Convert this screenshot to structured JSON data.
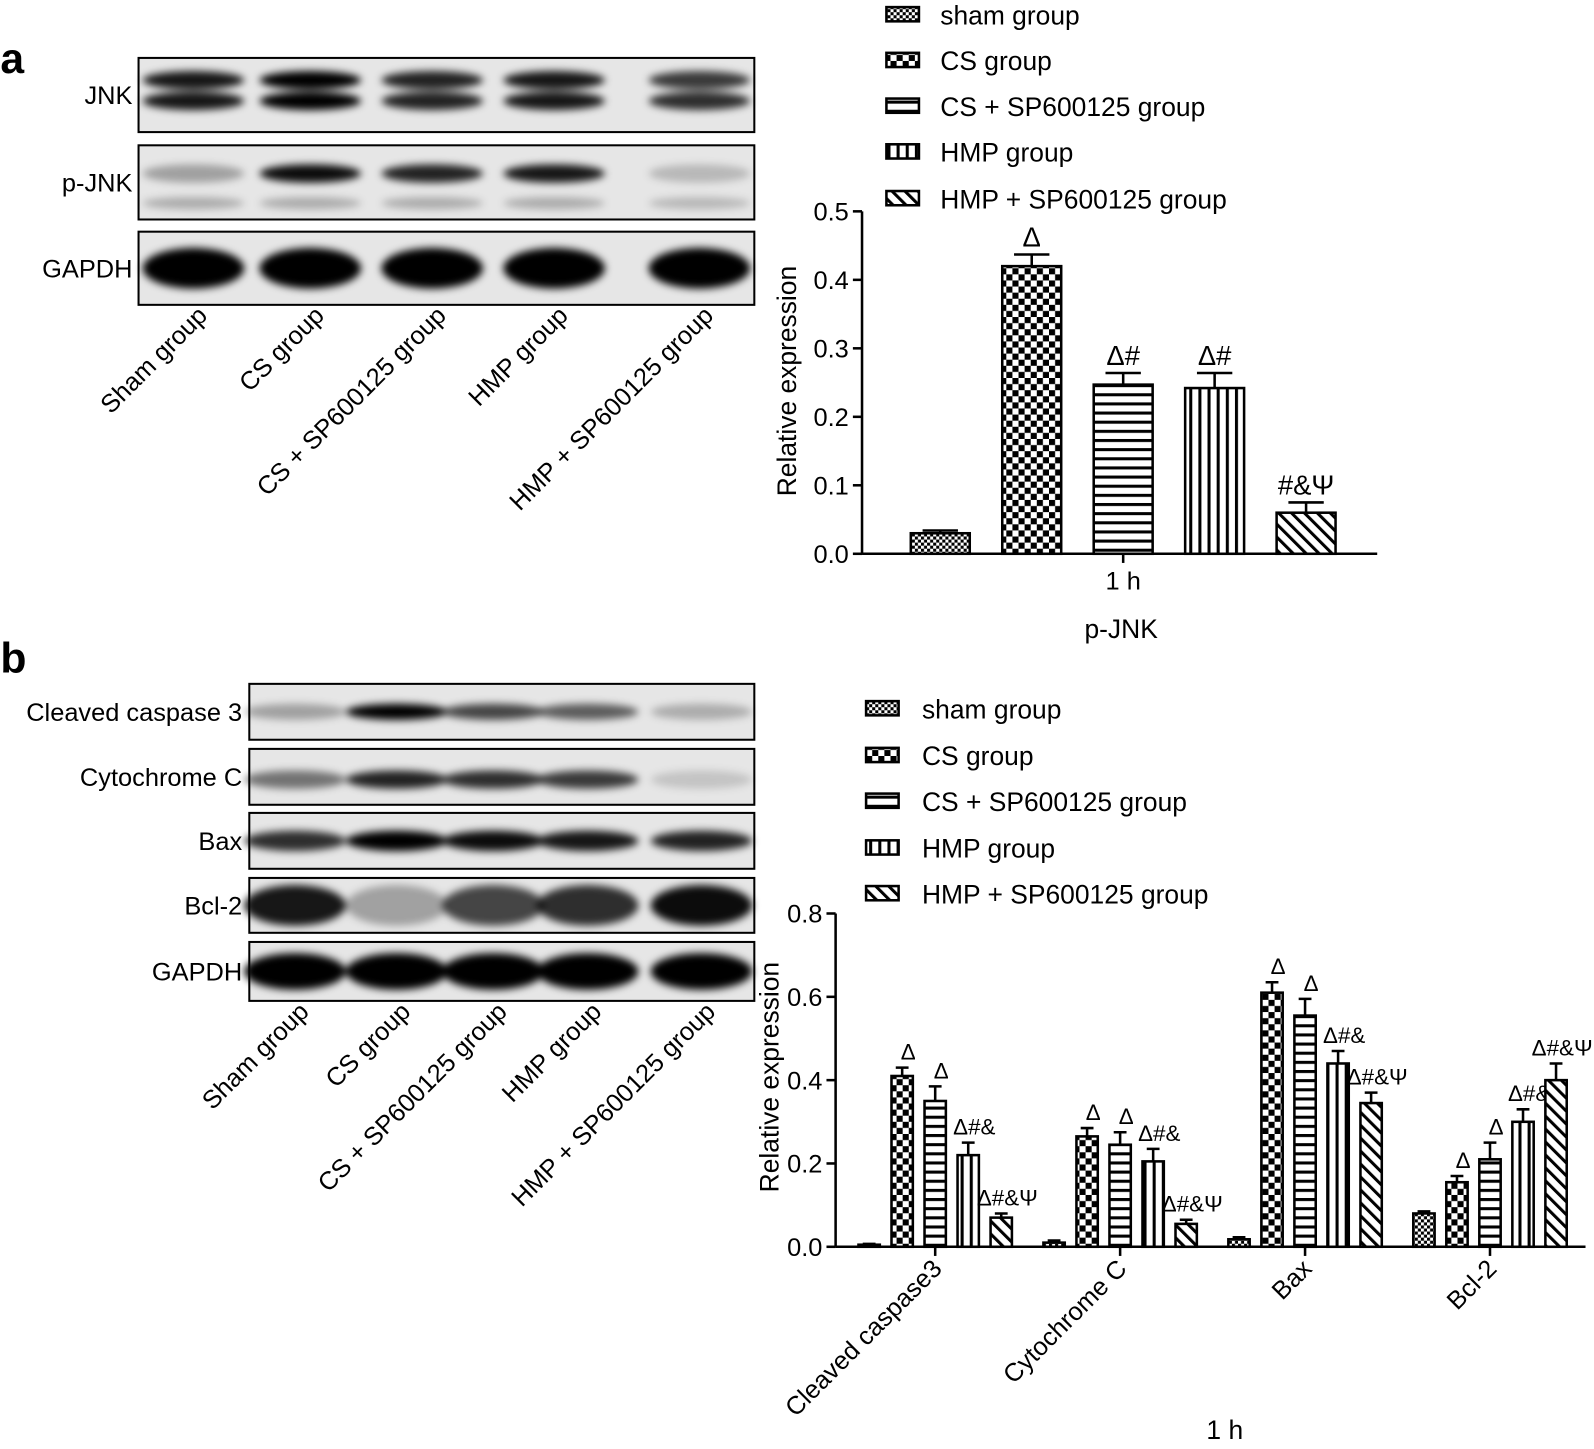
{
  "panel_labels": [
    "a",
    "b"
  ],
  "blots": [
    {
      "rows": [
        "JNK",
        "p-JNK",
        "GAPDH"
      ],
      "lanes": [
        "Sham group",
        "CS group",
        "CS + SP600125 group",
        "HMP group",
        "HMP + SP600125 group"
      ]
    },
    {
      "rows": [
        "Cleaved caspase 3",
        "Cytochrome C",
        "Bax",
        "Bcl-2",
        "GAPDH"
      ],
      "lanes": [
        "Sham group",
        "CS group",
        "CS + SP600125 group",
        "HMP group",
        "HMP + SP600125 group"
      ]
    }
  ],
  "chart_data": [
    {
      "type": "bar",
      "xlabel": "p-JNK",
      "ylabel": "Relative expression",
      "categories": [
        "1 h"
      ],
      "ylim": [
        0,
        0.5
      ],
      "yticks": [
        {
          "value": 0,
          "label": "0.0"
        },
        0.1,
        0.2,
        0.3,
        0.4,
        0.5
      ],
      "series": [
        {
          "name": "sham group",
          "color": "#000000",
          "pattern": "dense",
          "values": [
            0.03
          ],
          "errors": [
            0.004
          ],
          "annotations": [
            null
          ]
        },
        {
          "name": "CS group",
          "color": "#000000",
          "pattern": "checker",
          "values": [
            0.42
          ],
          "errors": [
            0.017
          ],
          "annotations": [
            "Δ"
          ]
        },
        {
          "name": "CS + SP600125 group",
          "color": "#000000",
          "pattern": "horizontal",
          "values": [
            0.247
          ],
          "errors": [
            0.017
          ],
          "annotations": [
            "Δ#"
          ]
        },
        {
          "name": "HMP group",
          "color": "#000000",
          "pattern": "vertical",
          "values": [
            0.242
          ],
          "errors": [
            0.022
          ],
          "annotations": [
            "Δ#"
          ]
        },
        {
          "name": "HMP + SP600125 group",
          "color": "#000000",
          "pattern": "diagonal",
          "values": [
            0.06
          ],
          "errors": [
            0.015
          ],
          "annotations": [
            "#&Ψ"
          ]
        }
      ]
    },
    {
      "type": "bar",
      "xlabel": "1 h",
      "ylabel": "Relative expression",
      "categories": [
        "Cleaved caspase3",
        "Cytochrome C",
        "Bax",
        "Bcl-2"
      ],
      "ylim": [
        0,
        0.8
      ],
      "yticks": [
        {
          "value": 0,
          "label": "0.0"
        },
        0.2,
        0.4,
        0.6,
        0.8
      ],
      "series": [
        {
          "name": "sham group",
          "color": "#000000",
          "pattern": "dense",
          "values": [
            0.005,
            0.01,
            0.018,
            0.08
          ],
          "errors": [
            0.002,
            0.005,
            0.005,
            0.005
          ],
          "annotations": [
            null,
            null,
            null,
            null
          ]
        },
        {
          "name": "CS group",
          "color": "#000000",
          "pattern": "checker",
          "values": [
            0.41,
            0.265,
            0.61,
            0.155
          ],
          "errors": [
            0.02,
            0.02,
            0.025,
            0.015
          ],
          "annotations": [
            "Δ",
            "Δ",
            "Δ",
            "Δ"
          ]
        },
        {
          "name": "CS + SP600125 group",
          "color": "#000000",
          "pattern": "horizontal",
          "values": [
            0.35,
            0.245,
            0.555,
            0.21
          ],
          "errors": [
            0.035,
            0.03,
            0.04,
            0.04
          ],
          "annotations": [
            "Δ",
            "Δ",
            "Δ",
            "Δ"
          ]
        },
        {
          "name": "HMP group",
          "color": "#000000",
          "pattern": "vertical",
          "values": [
            0.22,
            0.205,
            0.44,
            0.3
          ],
          "errors": [
            0.03,
            0.03,
            0.03,
            0.03
          ],
          "annotations": [
            "Δ#&",
            "Δ#&",
            "Δ#&",
            "Δ#&"
          ]
        },
        {
          "name": "HMP + SP600125 group",
          "color": "#000000",
          "pattern": "diagonal",
          "values": [
            0.07,
            0.055,
            0.345,
            0.4
          ],
          "errors": [
            0.01,
            0.01,
            0.025,
            0.04
          ],
          "annotations": [
            "Δ#&Ψ",
            "Δ#&Ψ",
            "Δ#&Ψ",
            "Δ#&Ψ"
          ]
        }
      ]
    }
  ]
}
